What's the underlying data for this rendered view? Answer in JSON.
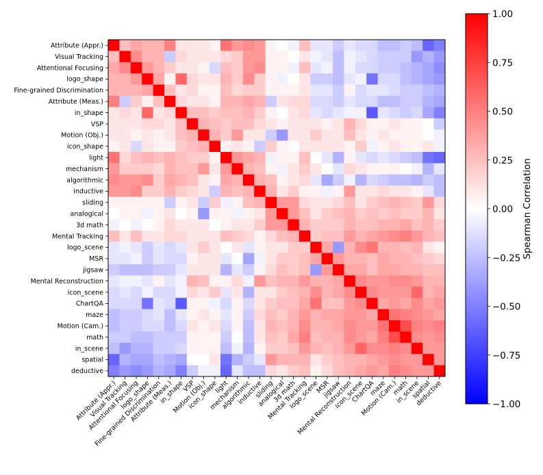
{
  "chart_data": {
    "type": "heatmap",
    "labels": [
      "Attribute (Appr.)",
      "Visual Tracking",
      "Attentional Focusing",
      "logo_shape",
      "Fine-grained Discrimination",
      "Attribute (Meas.)",
      "in_shape",
      "VSP",
      "Motion (Obj.)",
      "icon_shape",
      "light",
      "mechanism",
      "algorithmic",
      "inductive",
      "sliding",
      "analogical",
      "3d math",
      "Mental Tracking",
      "logo_scene",
      "MSR",
      "jigsaw",
      "Mental Reconstruction",
      "icon_scene",
      "ChartQA",
      "maze",
      "Motion (Cam.)",
      "math",
      "in_scene",
      "spatial",
      "deductive"
    ],
    "values": [
      [
        1.0,
        0.25,
        0.35,
        0.3,
        0.3,
        0.5,
        0.1,
        0.1,
        0.1,
        0.05,
        0.55,
        0.4,
        0.45,
        0.4,
        0.05,
        0.0,
        -0.05,
        0.25,
        -0.1,
        -0.1,
        -0.2,
        -0.1,
        -0.15,
        -0.15,
        -0.25,
        -0.25,
        -0.2,
        -0.25,
        -0.6,
        -0.5
      ],
      [
        0.25,
        1.0,
        0.45,
        0.3,
        0.3,
        -0.2,
        0.15,
        0.1,
        0.1,
        0.1,
        0.15,
        0.2,
        0.4,
        0.4,
        0.05,
        0.05,
        0.0,
        0.1,
        -0.05,
        -0.1,
        -0.25,
        -0.05,
        -0.1,
        -0.15,
        -0.2,
        -0.2,
        -0.2,
        -0.4,
        -0.3,
        -0.4
      ],
      [
        0.35,
        0.45,
        1.0,
        0.4,
        0.3,
        0.2,
        0.1,
        0.1,
        0.05,
        -0.15,
        0.25,
        0.2,
        0.4,
        0.45,
        0.05,
        0.05,
        -0.05,
        0.25,
        -0.1,
        -0.05,
        -0.25,
        -0.05,
        -0.15,
        -0.15,
        -0.2,
        -0.2,
        -0.25,
        -0.3,
        -0.35,
        -0.45
      ],
      [
        0.3,
        0.3,
        0.4,
        1.0,
        0.35,
        0.05,
        0.6,
        0.15,
        0.1,
        0.1,
        0.3,
        0.2,
        0.45,
        0.2,
        0.05,
        -0.05,
        0.0,
        0.1,
        -0.2,
        -0.2,
        -0.25,
        -0.1,
        -0.05,
        -0.55,
        -0.15,
        -0.15,
        -0.25,
        -0.3,
        -0.35,
        -0.4
      ],
      [
        0.3,
        0.3,
        0.3,
        0.35,
        1.0,
        0.25,
        0.1,
        0.15,
        0.05,
        0.05,
        0.25,
        0.15,
        0.2,
        0.2,
        0.05,
        0.05,
        0.05,
        0.1,
        -0.1,
        -0.1,
        -0.2,
        0.05,
        -0.15,
        -0.1,
        -0.1,
        -0.15,
        -0.2,
        -0.2,
        -0.25,
        -0.3
      ],
      [
        0.5,
        -0.2,
        0.2,
        0.05,
        0.25,
        1.0,
        0.15,
        0.1,
        0.1,
        0.05,
        0.3,
        0.3,
        0.35,
        0.3,
        -0.2,
        0.1,
        0.15,
        0.15,
        -0.15,
        -0.15,
        -0.2,
        -0.1,
        -0.15,
        -0.15,
        -0.25,
        -0.25,
        -0.2,
        -0.2,
        -0.3,
        -0.35
      ],
      [
        0.1,
        0.15,
        0.1,
        0.6,
        0.1,
        0.15,
        1.0,
        0.25,
        0.25,
        0.2,
        0.25,
        0.25,
        0.3,
        0.2,
        0.05,
        0.0,
        0.1,
        0.15,
        -0.1,
        -0.15,
        -0.1,
        -0.05,
        -0.05,
        -0.65,
        -0.1,
        -0.15,
        -0.2,
        -0.15,
        -0.35,
        -0.5
      ],
      [
        0.1,
        0.1,
        0.1,
        0.15,
        0.15,
        0.1,
        0.25,
        1.0,
        0.3,
        0.25,
        0.2,
        0.25,
        0.25,
        0.15,
        0.1,
        0.05,
        0.1,
        0.1,
        0.1,
        0.05,
        0.1,
        0.3,
        0.15,
        0.05,
        0.05,
        0.1,
        0.05,
        0.05,
        0.0,
        -0.2
      ],
      [
        0.1,
        0.1,
        0.05,
        0.1,
        0.05,
        0.1,
        0.25,
        0.3,
        1.0,
        0.3,
        0.2,
        0.4,
        0.1,
        0.1,
        -0.2,
        -0.4,
        0.1,
        0.1,
        0.2,
        0.1,
        0.1,
        0.25,
        0.1,
        0.05,
        0.1,
        0.05,
        0.05,
        0.05,
        0.0,
        -0.05
      ],
      [
        0.05,
        0.1,
        -0.15,
        0.1,
        0.05,
        0.05,
        0.2,
        0.25,
        0.3,
        1.0,
        0.05,
        0.1,
        0.05,
        -0.2,
        0.2,
        0.05,
        0.0,
        0.1,
        0.1,
        0.1,
        0.1,
        0.05,
        0.2,
        -0.05,
        0.05,
        0.1,
        0.05,
        0.05,
        0.1,
        -0.05
      ],
      [
        0.55,
        0.15,
        0.25,
        0.3,
        0.25,
        0.3,
        0.25,
        0.2,
        0.2,
        0.05,
        1.0,
        0.4,
        0.35,
        0.3,
        -0.05,
        0.05,
        0.05,
        0.25,
        0.0,
        -0.1,
        -0.3,
        0.05,
        -0.1,
        -0.15,
        -0.1,
        -0.15,
        -0.2,
        -0.25,
        -0.55,
        -0.6
      ],
      [
        0.4,
        0.2,
        0.2,
        0.2,
        0.15,
        0.3,
        0.25,
        0.25,
        0.4,
        0.1,
        0.4,
        1.0,
        0.3,
        0.25,
        0.05,
        -0.05,
        0.1,
        0.2,
        0.1,
        0.0,
        -0.1,
        0.15,
        0.1,
        0.05,
        0.05,
        0.05,
        0.0,
        -0.05,
        -0.3,
        -0.1
      ],
      [
        0.45,
        0.4,
        0.4,
        0.45,
        0.2,
        0.35,
        0.3,
        0.25,
        0.1,
        0.05,
        0.35,
        0.3,
        1.0,
        0.3,
        0.25,
        0.05,
        0.1,
        0.15,
        -0.1,
        -0.35,
        -0.2,
        -0.05,
        -0.3,
        -0.15,
        -0.2,
        -0.25,
        -0.25,
        -0.3,
        -0.2,
        -0.25
      ],
      [
        0.4,
        0.4,
        0.45,
        0.2,
        0.2,
        0.3,
        0.2,
        0.15,
        0.1,
        -0.2,
        0.3,
        0.25,
        0.3,
        1.0,
        0.3,
        0.1,
        0.2,
        0.05,
        0.05,
        -0.05,
        0.05,
        0.4,
        0.1,
        0.1,
        0.15,
        0.1,
        0.1,
        0.05,
        -0.1,
        -0.25
      ],
      [
        0.05,
        0.05,
        0.05,
        0.05,
        0.05,
        -0.2,
        0.05,
        0.1,
        -0.2,
        0.2,
        -0.05,
        0.05,
        0.25,
        0.3,
        1.0,
        0.4,
        0.4,
        0.15,
        0.1,
        0.1,
        0.15,
        0.25,
        0.1,
        0.2,
        0.25,
        0.3,
        0.25,
        0.2,
        0.4,
        0.15
      ],
      [
        0.0,
        0.05,
        0.05,
        -0.05,
        0.05,
        0.1,
        0.0,
        0.05,
        -0.4,
        0.05,
        0.05,
        -0.05,
        0.05,
        0.1,
        0.4,
        1.0,
        0.4,
        0.25,
        0.1,
        0.2,
        0.25,
        0.3,
        0.2,
        0.25,
        0.2,
        0.25,
        0.2,
        0.2,
        0.3,
        0.1
      ],
      [
        -0.05,
        0.0,
        -0.05,
        0.0,
        0.05,
        0.15,
        0.1,
        0.1,
        0.1,
        0.0,
        0.05,
        0.1,
        0.1,
        0.2,
        0.4,
        0.4,
        1.0,
        0.3,
        0.2,
        0.2,
        0.2,
        0.3,
        0.25,
        0.25,
        0.3,
        0.3,
        0.35,
        0.25,
        0.3,
        0.2
      ],
      [
        0.25,
        0.1,
        0.25,
        0.1,
        0.1,
        0.15,
        0.15,
        0.1,
        0.1,
        0.1,
        0.25,
        0.2,
        0.15,
        0.05,
        0.15,
        0.25,
        0.3,
        1.0,
        0.2,
        0.25,
        0.25,
        0.4,
        0.3,
        0.35,
        0.4,
        0.45,
        0.5,
        0.4,
        0.3,
        0.25
      ],
      [
        -0.1,
        -0.05,
        -0.1,
        -0.2,
        -0.1,
        -0.15,
        -0.1,
        0.1,
        0.2,
        0.1,
        0.0,
        0.1,
        -0.1,
        0.05,
        0.1,
        0.1,
        0.2,
        0.2,
        1.0,
        0.35,
        -0.4,
        0.3,
        0.45,
        0.55,
        0.3,
        0.3,
        0.25,
        0.3,
        0.1,
        0.05
      ],
      [
        -0.1,
        -0.1,
        -0.05,
        -0.2,
        -0.1,
        -0.15,
        -0.15,
        0.05,
        0.1,
        0.1,
        -0.1,
        0.0,
        -0.35,
        -0.05,
        0.1,
        0.2,
        0.2,
        0.25,
        0.35,
        1.0,
        0.4,
        0.3,
        0.3,
        0.25,
        0.35,
        0.3,
        0.3,
        0.25,
        0.2,
        0.15
      ],
      [
        -0.2,
        -0.25,
        -0.25,
        -0.25,
        -0.2,
        -0.2,
        -0.1,
        0.1,
        0.1,
        0.1,
        -0.3,
        -0.1,
        -0.2,
        0.05,
        0.15,
        0.25,
        0.2,
        0.25,
        -0.4,
        0.4,
        1.0,
        0.35,
        0.35,
        0.25,
        0.35,
        0.35,
        0.3,
        0.3,
        0.25,
        0.25
      ],
      [
        -0.1,
        -0.05,
        -0.05,
        -0.1,
        0.05,
        -0.1,
        -0.05,
        0.3,
        0.25,
        0.05,
        0.05,
        0.15,
        -0.05,
        0.4,
        0.25,
        0.3,
        0.3,
        0.4,
        0.3,
        0.3,
        0.35,
        1.0,
        0.45,
        0.4,
        0.4,
        0.45,
        0.45,
        0.4,
        0.3,
        0.3
      ],
      [
        -0.15,
        -0.1,
        -0.15,
        -0.05,
        -0.15,
        -0.15,
        -0.05,
        0.15,
        0.1,
        0.2,
        -0.1,
        0.1,
        -0.3,
        0.1,
        0.1,
        0.2,
        0.25,
        0.3,
        0.45,
        0.3,
        0.35,
        0.45,
        1.0,
        0.45,
        0.4,
        0.4,
        0.4,
        0.6,
        0.3,
        0.35
      ],
      [
        -0.15,
        -0.15,
        -0.15,
        -0.55,
        -0.1,
        -0.15,
        -0.65,
        0.05,
        0.05,
        -0.05,
        -0.15,
        0.05,
        -0.15,
        0.1,
        0.2,
        0.25,
        0.25,
        0.35,
        0.55,
        0.25,
        0.25,
        0.4,
        0.45,
        1.0,
        0.35,
        0.4,
        0.35,
        0.45,
        0.35,
        0.4
      ],
      [
        -0.25,
        -0.2,
        -0.2,
        -0.15,
        -0.1,
        -0.25,
        -0.1,
        0.05,
        0.1,
        0.05,
        -0.1,
        0.05,
        -0.2,
        0.15,
        0.25,
        0.2,
        0.3,
        0.4,
        0.3,
        0.35,
        0.35,
        0.4,
        0.4,
        0.35,
        1.0,
        0.55,
        0.5,
        0.45,
        0.4,
        0.35
      ],
      [
        -0.25,
        -0.2,
        -0.2,
        -0.15,
        -0.15,
        -0.25,
        -0.15,
        0.1,
        0.05,
        0.1,
        -0.15,
        0.05,
        -0.25,
        0.1,
        0.3,
        0.25,
        0.3,
        0.45,
        0.3,
        0.3,
        0.35,
        0.45,
        0.4,
        0.4,
        0.55,
        1.0,
        0.7,
        0.5,
        0.45,
        0.5
      ],
      [
        -0.2,
        -0.2,
        -0.25,
        -0.25,
        -0.2,
        -0.2,
        -0.2,
        0.05,
        0.05,
        0.05,
        -0.2,
        0.0,
        -0.25,
        0.1,
        0.25,
        0.2,
        0.35,
        0.5,
        0.25,
        0.3,
        0.3,
        0.45,
        0.4,
        0.35,
        0.5,
        0.7,
        1.0,
        0.45,
        0.4,
        0.45
      ],
      [
        -0.25,
        -0.4,
        -0.3,
        -0.3,
        -0.2,
        -0.2,
        -0.15,
        0.05,
        0.05,
        0.05,
        -0.25,
        -0.05,
        -0.3,
        0.05,
        0.2,
        0.2,
        0.25,
        0.4,
        0.3,
        0.25,
        0.3,
        0.4,
        0.6,
        0.45,
        0.45,
        0.5,
        0.45,
        1.0,
        0.4,
        0.4
      ],
      [
        -0.6,
        -0.3,
        -0.35,
        -0.35,
        -0.25,
        -0.3,
        -0.35,
        0.0,
        0.0,
        0.1,
        -0.55,
        -0.3,
        -0.2,
        -0.1,
        0.4,
        0.3,
        0.3,
        0.3,
        0.1,
        0.2,
        0.25,
        0.3,
        0.3,
        0.35,
        0.4,
        0.45,
        0.4,
        0.4,
        1.0,
        0.4
      ],
      [
        -0.5,
        -0.4,
        -0.45,
        -0.4,
        -0.3,
        -0.35,
        -0.5,
        -0.2,
        -0.05,
        -0.05,
        -0.6,
        -0.1,
        -0.25,
        -0.25,
        0.15,
        0.1,
        0.2,
        0.25,
        0.05,
        0.15,
        0.25,
        0.3,
        0.35,
        0.4,
        0.35,
        0.5,
        0.45,
        0.4,
        0.4,
        1.0
      ]
    ],
    "vmin": -1.0,
    "vmax": 1.0,
    "colormap": "bwr",
    "colors": {
      "low": "#0000ff",
      "mid": "#ffffff",
      "high": "#ff0000"
    },
    "colorbar": {
      "label": "Spearman Correlation",
      "ticks": [
        1.0,
        0.75,
        0.5,
        0.25,
        0.0,
        -0.25,
        -0.5,
        -0.75,
        -1.0
      ],
      "tick_labels": [
        "1.00",
        "0.75",
        "0.50",
        "0.25",
        "0.00",
        "−0.25",
        "−0.50",
        "−0.75",
        "−1.00"
      ]
    }
  }
}
